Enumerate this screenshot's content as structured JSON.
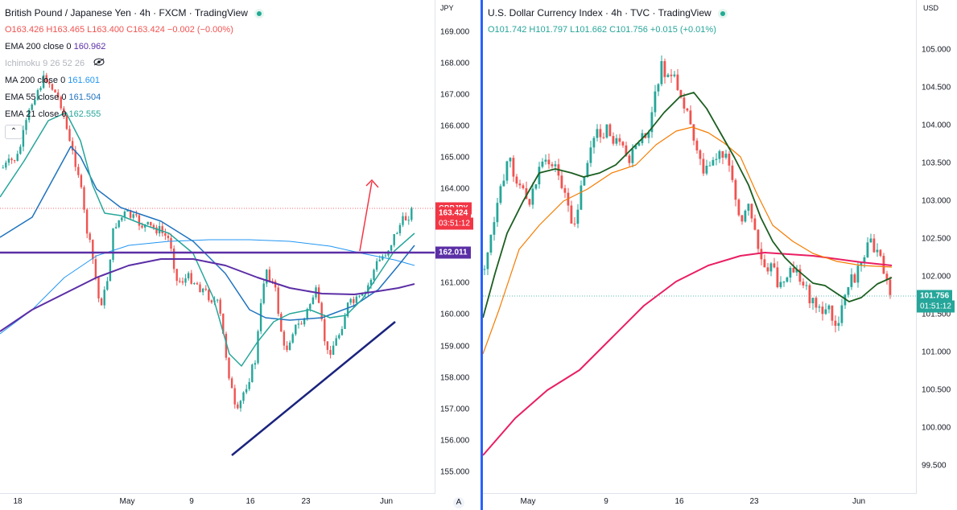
{
  "left": {
    "title": "British Pound / Japanese Yen · 4h · FXCM · TradingView",
    "ohlc": {
      "o": "O163.426",
      "h": "H163.465",
      "l": "L163.400",
      "c": "C163.424",
      "chg": "−0.002 (−0.00%)"
    },
    "indicators": [
      {
        "label": "EMA 200 close 0",
        "value": "160.962",
        "color": "#5b2ea6"
      },
      {
        "label": "Ichimoku 9 26 52 26",
        "value": "",
        "color": "#b2b5be"
      },
      {
        "label": "MA 200 close 0",
        "value": "161.601",
        "color": "#2196f3"
      },
      {
        "label": "EMA 55 close 0",
        "value": "161.504",
        "color": "#1e73be"
      },
      {
        "label": "EMA 21 close 0",
        "value": "162.555",
        "color": "#26a69a"
      }
    ],
    "currency": "JPY",
    "y_ticks": [
      "169.000",
      "168.000",
      "167.000",
      "166.000",
      "165.000",
      "164.000",
      "163.000",
      "162.000",
      "161.000",
      "160.000",
      "159.000",
      "158.000",
      "157.000",
      "156.000",
      "155.000"
    ],
    "x_ticks": [
      "18",
      "May",
      "9",
      "16",
      "23",
      "Jun"
    ],
    "x_ticks_extra": [
      "2"
    ],
    "price_badge": {
      "symbol": "GBPJPY",
      "price": "163.424",
      "countdown": "03:51:12"
    },
    "level_badge": "162.011",
    "colors": {
      "up": "#26a69a",
      "down": "#ef5350",
      "level": "#5b2ea6",
      "trend": "#1a237e",
      "arrow": "#f23645"
    }
  },
  "right": {
    "title": "U.S. Dollar Currency Index · 4h · TVC · TradingView",
    "ohlc": {
      "o": "O101.742",
      "h": "H101.797",
      "l": "L101.662",
      "c": "C101.756",
      "chg": "+0.015 (+0.01%)"
    },
    "currency": "USD",
    "y_ticks": [
      "105.000",
      "104.500",
      "104.000",
      "103.500",
      "103.000",
      "102.500",
      "102.000",
      "101.500",
      "101.000",
      "100.500",
      "100.000",
      "99.500"
    ],
    "x_ticks": [
      "May",
      "9",
      "16",
      "23",
      "Jun"
    ],
    "price_badge": {
      "price": "101.756",
      "countdown": "01:51:12"
    },
    "colors": {
      "up": "#26a69a",
      "down": "#ef5350",
      "ma200": "#e91e63",
      "ma55": "#f57c00",
      "ema21": "#1b5e20"
    }
  },
  "axis_button": "A",
  "collapse_icon": "chevron-up-icon",
  "eye_icon": "eye-off-icon"
}
